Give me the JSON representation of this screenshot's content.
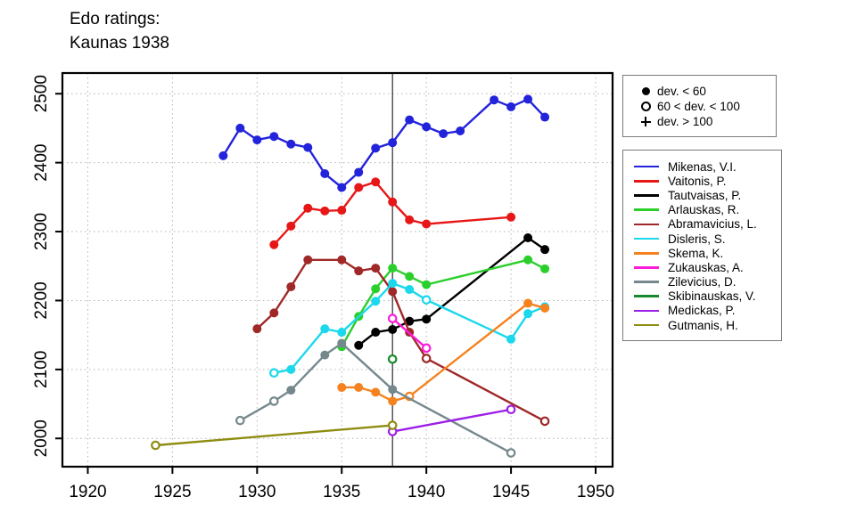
{
  "title_line1": "Edo ratings:",
  "title_line2": "Kaunas 1938",
  "marker_legend": {
    "items": [
      {
        "marker": "filled-circle",
        "label": "dev. < 60"
      },
      {
        "marker": "open-circle",
        "label": "60 < dev. < 100"
      },
      {
        "marker": "plus",
        "label": "dev. > 100"
      }
    ]
  },
  "chart_data": {
    "type": "line",
    "title": "Edo ratings: Kaunas 1938",
    "xlabel": "",
    "ylabel": "",
    "xlim": [
      1918.5,
      1951.0
    ],
    "ylim": [
      1959,
      2530
    ],
    "xticks": [
      1920,
      1925,
      1930,
      1935,
      1940,
      1945,
      1950
    ],
    "yticks": [
      2000,
      2100,
      2200,
      2300,
      2400,
      2500
    ],
    "grid": "dotted",
    "vline_x": 1938,
    "legend_position": "right",
    "marker_meaning": {
      "f": "dev. < 60",
      "o": "60 < dev. < 100",
      "p": "dev. > 100"
    },
    "series": [
      {
        "name": "Mikenas, V.I.",
        "color": "#2323dc",
        "points": [
          [
            1928,
            2410,
            "f"
          ],
          [
            1929,
            2450,
            "f"
          ],
          [
            1930,
            2433,
            "f"
          ],
          [
            1931,
            2438,
            "f"
          ],
          [
            1932,
            2427,
            "f"
          ],
          [
            1933,
            2422,
            "f"
          ],
          [
            1934,
            2384,
            "f"
          ],
          [
            1935,
            2364,
            "f"
          ],
          [
            1936,
            2386,
            "f"
          ],
          [
            1937,
            2421,
            "f"
          ],
          [
            1938,
            2429,
            "f"
          ],
          [
            1939,
            2462,
            "f"
          ],
          [
            1940,
            2452,
            "f"
          ],
          [
            1941,
            2442,
            "f"
          ],
          [
            1942,
            2446,
            "f"
          ],
          [
            1944,
            2491,
            "f"
          ],
          [
            1945,
            2481,
            "f"
          ],
          [
            1946,
            2492,
            "f"
          ],
          [
            1947,
            2466,
            "f"
          ]
        ]
      },
      {
        "name": "Vaitonis, P.",
        "color": "#e81717",
        "points": [
          [
            1931,
            2281,
            "f"
          ],
          [
            1932,
            2308,
            "f"
          ],
          [
            1933,
            2334,
            "f"
          ],
          [
            1934,
            2330,
            "f"
          ],
          [
            1935,
            2331,
            "f"
          ],
          [
            1936,
            2364,
            "f"
          ],
          [
            1937,
            2372,
            "f"
          ],
          [
            1938,
            2343,
            "f"
          ],
          [
            1939,
            2317,
            "f"
          ],
          [
            1940,
            2311,
            "f"
          ],
          [
            1945,
            2321,
            "f"
          ]
        ]
      },
      {
        "name": "Tautvaisas, P.",
        "color": "#000000",
        "points": [
          [
            1936,
            2135,
            "f"
          ],
          [
            1937,
            2154,
            "f"
          ],
          [
            1938,
            2158,
            "f"
          ],
          [
            1939,
            2170,
            "f"
          ],
          [
            1940,
            2173,
            "f"
          ],
          [
            1946,
            2291,
            "f"
          ],
          [
            1947,
            2274,
            "f"
          ]
        ]
      },
      {
        "name": "Arlauskas, R.",
        "color": "#2bcf2b",
        "points": [
          [
            1935,
            2133,
            "f"
          ],
          [
            1936,
            2177,
            "f"
          ],
          [
            1937,
            2217,
            "f"
          ],
          [
            1938,
            2247,
            "f"
          ],
          [
            1939,
            2235,
            "f"
          ],
          [
            1940,
            2223,
            "f"
          ],
          [
            1946,
            2259,
            "f"
          ],
          [
            1947,
            2246,
            "f"
          ]
        ]
      },
      {
        "name": "Abramavicius, L.",
        "color": "#a02828",
        "points": [
          [
            1930,
            2159,
            "f"
          ],
          [
            1931,
            2182,
            "f"
          ],
          [
            1932,
            2220,
            "f"
          ],
          [
            1933,
            2259,
            "f"
          ],
          [
            1935,
            2259,
            "f"
          ],
          [
            1936,
            2243,
            "f"
          ],
          [
            1937,
            2247,
            "f"
          ],
          [
            1938,
            2213,
            "f"
          ],
          [
            1939,
            2154,
            "f"
          ],
          [
            1940,
            2116,
            "o"
          ],
          [
            1947,
            2025,
            "o"
          ]
        ]
      },
      {
        "name": "Disleris, S.",
        "color": "#1cd8ec",
        "points": [
          [
            1931,
            2095,
            "o"
          ],
          [
            1932,
            2100,
            "f"
          ],
          [
            1934,
            2159,
            "f"
          ],
          [
            1935,
            2154,
            "f"
          ],
          [
            1937,
            2199,
            "f"
          ],
          [
            1938,
            2225,
            "f"
          ],
          [
            1939,
            2216,
            "f"
          ],
          [
            1940,
            2201,
            "o"
          ],
          [
            1945,
            2144,
            "f"
          ],
          [
            1946,
            2181,
            "f"
          ],
          [
            1947,
            2191,
            "f"
          ]
        ]
      },
      {
        "name": "Skema, K.",
        "color": "#f5821e",
        "points": [
          [
            1935,
            2074,
            "f"
          ],
          [
            1936,
            2074,
            "f"
          ],
          [
            1937,
            2067,
            "f"
          ],
          [
            1938,
            2054,
            "f"
          ],
          [
            1939,
            2061,
            "o"
          ],
          [
            1946,
            2196,
            "f"
          ],
          [
            1947,
            2189,
            "f"
          ]
        ]
      },
      {
        "name": "Zukauskas, A.",
        "color": "#fb1cd9",
        "points": [
          [
            1938,
            2174,
            "o"
          ],
          [
            1940,
            2131,
            "o"
          ]
        ]
      },
      {
        "name": "Zilevicius, D.",
        "color": "#75898d",
        "points": [
          [
            1929,
            2026,
            "o"
          ],
          [
            1931,
            2054,
            "o"
          ],
          [
            1932,
            2070,
            "f"
          ],
          [
            1934,
            2121,
            "f"
          ],
          [
            1935,
            2138,
            "f"
          ],
          [
            1938,
            2071,
            "f"
          ],
          [
            1945,
            1979,
            "o"
          ]
        ]
      },
      {
        "name": "Skibinauskas, V.",
        "color": "#168a2c",
        "points": [
          [
            1938,
            2115,
            "o"
          ]
        ]
      },
      {
        "name": "Medickas, P.",
        "color": "#9d1ee8",
        "points": [
          [
            1938,
            2010,
            "o"
          ],
          [
            1945,
            2042,
            "o"
          ]
        ]
      },
      {
        "name": "Gutmanis, H.",
        "color": "#8f8c12",
        "points": [
          [
            1924,
            1990,
            "o"
          ],
          [
            1938,
            2019,
            "o"
          ]
        ]
      }
    ]
  }
}
